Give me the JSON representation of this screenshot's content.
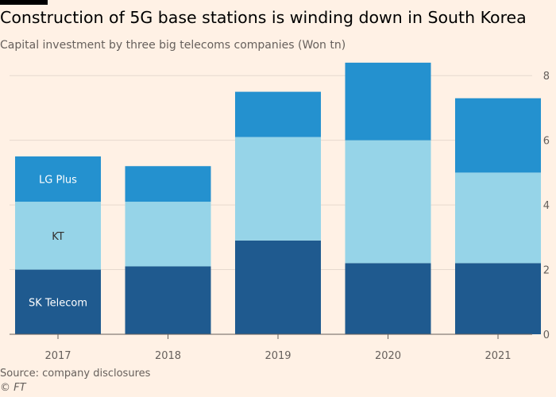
{
  "title": "Construction of 5G base stations is winding down in South Korea",
  "subtitle": "Capital investment by three big telecoms companies (Won tn)",
  "source": "Source: company disclosures",
  "credit": "© FT",
  "chart_data": {
    "type": "bar",
    "stacked": true,
    "categories": [
      "2017",
      "2018",
      "2019",
      "2020",
      "2021"
    ],
    "series": [
      {
        "name": "SK Telecom",
        "values": [
          2.0,
          2.1,
          2.9,
          2.2,
          2.2
        ],
        "color": "#1f5a8f"
      },
      {
        "name": "KT",
        "values": [
          2.1,
          2.0,
          3.2,
          3.8,
          2.8
        ],
        "color": "#96d4e8"
      },
      {
        "name": "LG Plus",
        "values": [
          1.4,
          1.1,
          1.4,
          2.4,
          2.3
        ],
        "color": "#2491cf"
      }
    ],
    "yticks": [
      0,
      2,
      4,
      6,
      8
    ],
    "ylim": [
      0,
      8.3
    ],
    "ylabel": "",
    "xlabel": "",
    "grid": true,
    "y_axis_side": "right",
    "legend_placement": "inside-first-bar",
    "label_color_light": "#ffffff",
    "label_color_dark": "#33302e",
    "grid_color": "#e6d9ce",
    "baseline_color": "#66605c"
  }
}
